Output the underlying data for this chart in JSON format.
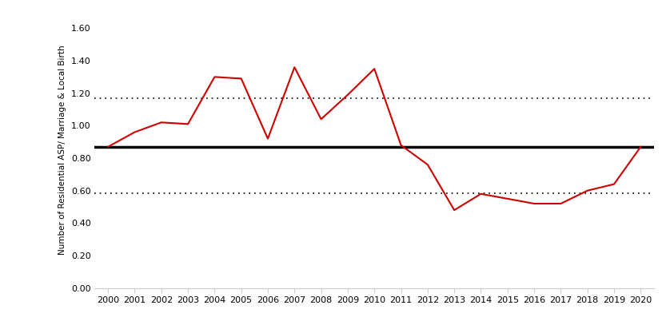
{
  "years": [
    2000,
    2001,
    2002,
    2003,
    2004,
    2005,
    2006,
    2007,
    2008,
    2009,
    2010,
    2011,
    2012,
    2013,
    2014,
    2015,
    2016,
    2017,
    2018,
    2019,
    2020
  ],
  "values": [
    0.87,
    0.96,
    1.02,
    1.01,
    1.3,
    1.29,
    0.92,
    1.36,
    1.04,
    1.19,
    1.35,
    0.88,
    0.76,
    0.48,
    0.58,
    0.55,
    0.52,
    0.52,
    0.6,
    0.64,
    0.87
  ],
  "mean_line": 0.87,
  "upper_dotted": 1.17,
  "lower_dotted": 0.585,
  "ylabel": "Number of Residential ASP/ Marriage & Local Birth",
  "ylim": [
    0.0,
    1.7
  ],
  "yticks": [
    0.0,
    0.2,
    0.4,
    0.6,
    0.8,
    1.0,
    1.2,
    1.4,
    1.6
  ],
  "line_color": "#cc0000",
  "mean_line_color": "#000000",
  "dotted_line_color": "#000000",
  "background_color": "#ffffff",
  "tick_fontsize": 8,
  "ylabel_fontsize": 7.5
}
